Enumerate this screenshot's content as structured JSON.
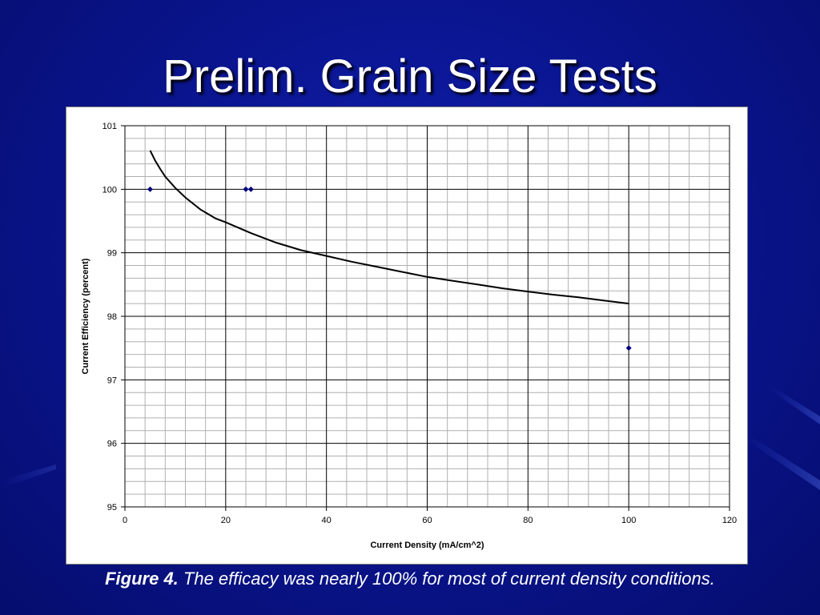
{
  "slide": {
    "title": "Prelim. Grain Size Tests",
    "caption_label": "Figure 4.",
    "caption_text": " The efficacy was nearly 100% for most of current density conditions."
  },
  "colors": {
    "background": "#0a1590",
    "point": "#000080",
    "curve": "#000000",
    "major_grid": "#000000",
    "minor_grid": "#b0b0b0"
  },
  "chart_data": {
    "type": "scatter",
    "title": "",
    "xlabel": "Current Density (mA/cm^2)",
    "ylabel": "Current Efficiency (percent)",
    "xlim": [
      0,
      120
    ],
    "ylim": [
      95,
      101
    ],
    "x_ticks": [
      0,
      20,
      40,
      60,
      80,
      100,
      120
    ],
    "y_ticks": [
      95,
      96,
      97,
      98,
      99,
      100,
      101
    ],
    "x_minor_step": 4,
    "y_minor_step": 0.2,
    "grid": true,
    "legend": "none",
    "series": [
      {
        "kind": "points",
        "marker": "diamond",
        "x": [
          5,
          24,
          25,
          100
        ],
        "y": [
          100.0,
          100.0,
          100.0,
          97.5
        ]
      },
      {
        "kind": "trendline",
        "x": [
          5,
          6,
          7,
          8,
          10,
          12,
          15,
          18,
          20,
          25,
          30,
          35,
          40,
          45,
          50,
          55,
          60,
          65,
          70,
          75,
          80,
          85,
          90,
          95,
          100
        ],
        "y": [
          100.61,
          100.45,
          100.32,
          100.2,
          100.02,
          99.87,
          99.68,
          99.54,
          99.48,
          99.31,
          99.16,
          99.04,
          98.95,
          98.86,
          98.78,
          98.7,
          98.62,
          98.56,
          98.5,
          98.44,
          98.39,
          98.34,
          98.3,
          98.25,
          98.2
        ]
      }
    ]
  }
}
